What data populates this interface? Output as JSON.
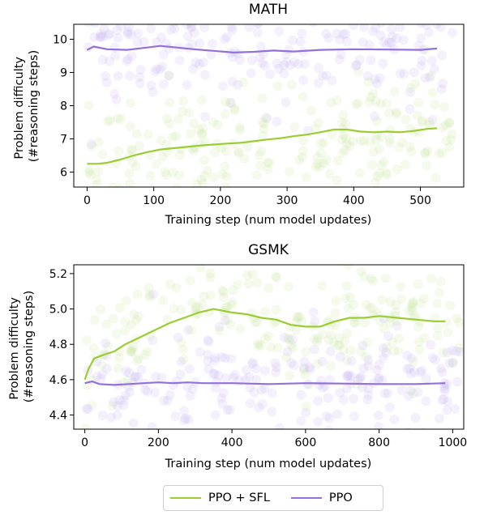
{
  "colors": {
    "ppo_sfl": "#9acd32",
    "ppo": "#9370db",
    "ppo_sfl_dots": "#c8e39a",
    "ppo_dots": "#c4b4ee"
  },
  "legend": {
    "items": [
      {
        "label": "PPO + SFL",
        "color": "#9acd32"
      },
      {
        "label": "PPO",
        "color": "#9370db"
      }
    ]
  },
  "chart_data": [
    {
      "type": "line",
      "title": "MATH",
      "xlabel": "Training step (num model updates)",
      "ylabel": [
        "Problem difficulty",
        "(#reasoning steps)"
      ],
      "xlim": [
        -20,
        565
      ],
      "ylim": [
        5.55,
        10.45
      ],
      "xticks": [
        0,
        100,
        200,
        300,
        400,
        500
      ],
      "yticks": [
        6,
        7,
        8,
        9,
        10
      ],
      "legend_position": "bottom",
      "series": [
        {
          "name": "PPO + SFL",
          "color": "#9acd32",
          "x": [
            0,
            15,
            30,
            50,
            70,
            90,
            110,
            130,
            150,
            170,
            190,
            210,
            230,
            250,
            270,
            290,
            310,
            330,
            350,
            370,
            390,
            410,
            430,
            450,
            470,
            490,
            510,
            525
          ],
          "y": [
            6.25,
            6.25,
            6.28,
            6.38,
            6.5,
            6.6,
            6.68,
            6.72,
            6.76,
            6.8,
            6.83,
            6.86,
            6.88,
            6.93,
            6.98,
            7.02,
            7.08,
            7.13,
            7.2,
            7.28,
            7.28,
            7.22,
            7.2,
            7.22,
            7.2,
            7.24,
            7.3,
            7.32
          ]
        },
        {
          "name": "PPO",
          "color": "#9370db",
          "x": [
            0,
            10,
            30,
            60,
            90,
            110,
            130,
            160,
            190,
            220,
            250,
            280,
            310,
            350,
            400,
            450,
            500,
            525
          ],
          "y": [
            9.68,
            9.78,
            9.7,
            9.68,
            9.75,
            9.8,
            9.76,
            9.7,
            9.65,
            9.6,
            9.62,
            9.66,
            9.63,
            9.68,
            9.7,
            9.69,
            9.68,
            9.72
          ]
        }
      ]
    },
    {
      "type": "line",
      "title": "GSMK",
      "xlabel": "Training step (num model updates)",
      "ylabel": [
        "Problem difficulty",
        "(#reasoning steps)"
      ],
      "xlim": [
        -30,
        1030
      ],
      "ylim": [
        4.32,
        5.25
      ],
      "xticks": [
        0,
        200,
        400,
        600,
        800,
        1000
      ],
      "yticks": [
        4.4,
        4.6,
        4.8,
        5.0,
        5.2
      ],
      "legend_position": "bottom",
      "series": [
        {
          "name": "PPO + SFL",
          "color": "#9acd32",
          "x": [
            0,
            10,
            25,
            50,
            80,
            110,
            150,
            190,
            230,
            270,
            310,
            350,
            375,
            400,
            440,
            480,
            520,
            560,
            600,
            640,
            680,
            720,
            760,
            800,
            850,
            900,
            950,
            980
          ],
          "y": [
            4.6,
            4.66,
            4.72,
            4.74,
            4.76,
            4.8,
            4.84,
            4.88,
            4.92,
            4.95,
            4.98,
            5.0,
            4.99,
            4.98,
            4.97,
            4.95,
            4.94,
            4.91,
            4.9,
            4.9,
            4.93,
            4.95,
            4.95,
            4.96,
            4.95,
            4.94,
            4.93,
            4.93
          ]
        },
        {
          "name": "PPO",
          "color": "#9370db",
          "x": [
            0,
            20,
            40,
            80,
            120,
            160,
            200,
            240,
            280,
            320,
            400,
            500,
            600,
            700,
            800,
            900,
            980
          ],
          "y": [
            4.58,
            4.59,
            4.575,
            4.57,
            4.575,
            4.58,
            4.585,
            4.58,
            4.585,
            4.58,
            4.58,
            4.575,
            4.58,
            4.578,
            4.575,
            4.575,
            4.58
          ]
        }
      ]
    }
  ]
}
